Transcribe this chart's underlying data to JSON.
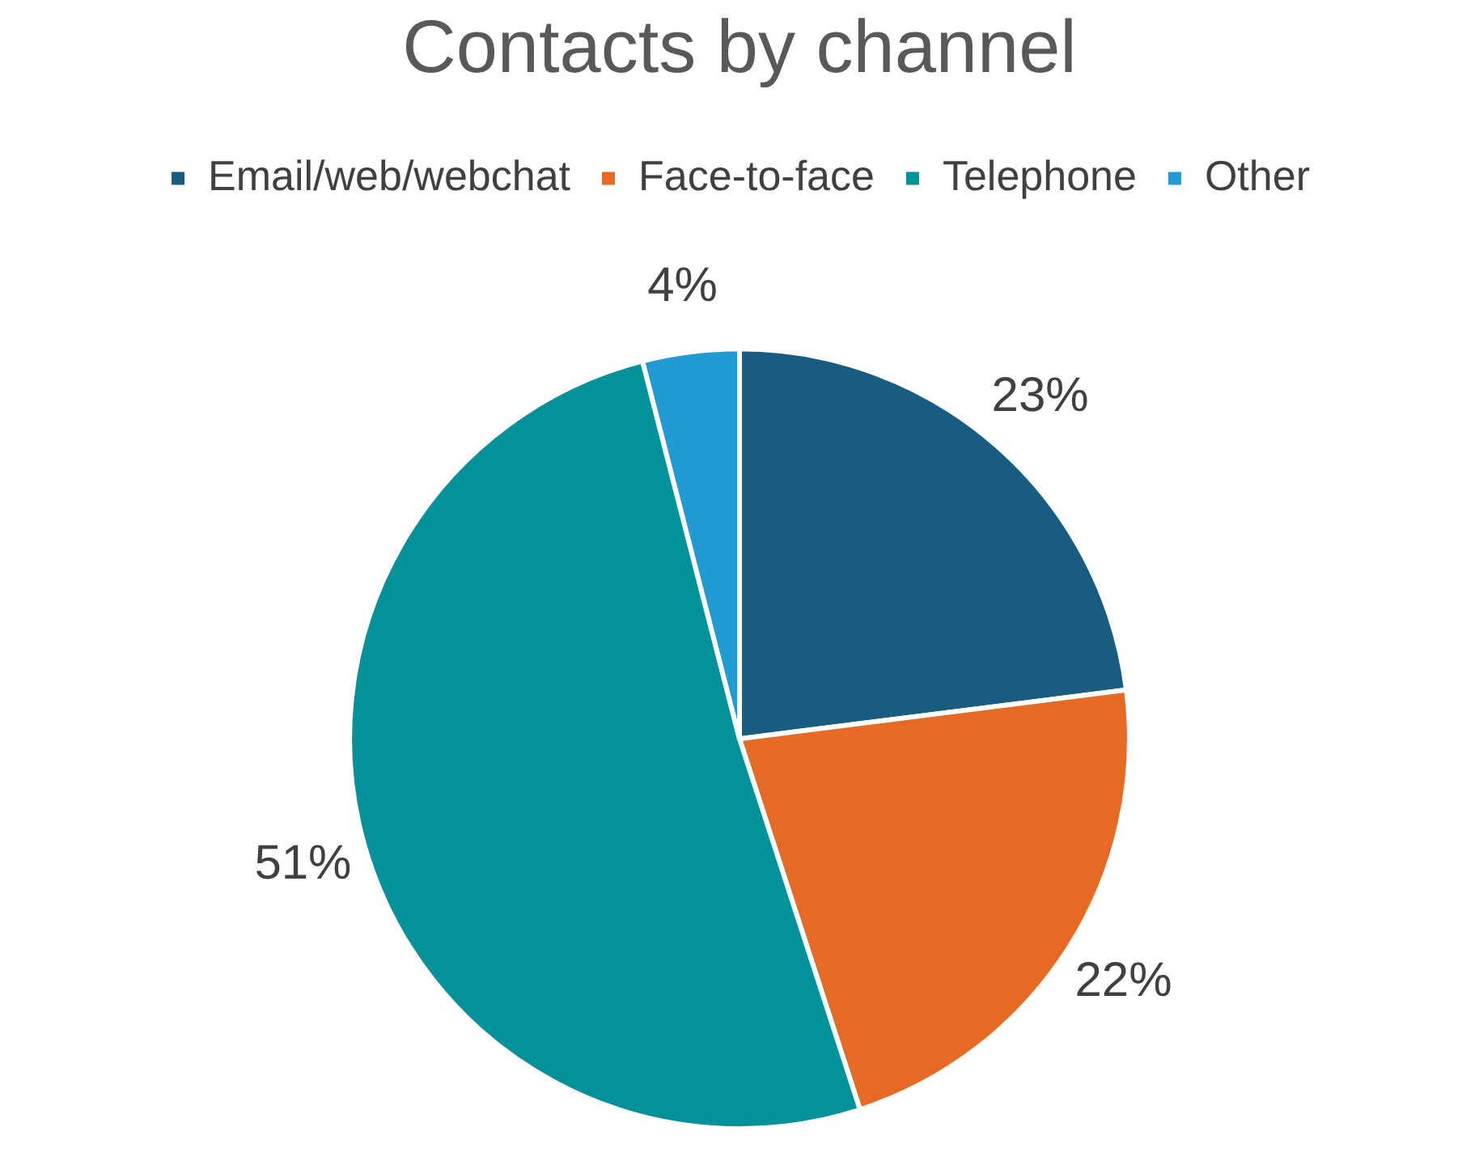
{
  "chart_data": {
    "type": "pie",
    "title": "Contacts by channel",
    "categories": [
      "Email/web/webchat",
      "Face-to-face",
      "Telephone",
      "Other"
    ],
    "values": [
      23,
      22,
      51,
      4
    ],
    "colors": [
      "#185d80",
      "#e66a24",
      "#03919a",
      "#219bd4"
    ],
    "value_labels": [
      "23%",
      "22%",
      "51%",
      "4%"
    ],
    "legend": "top"
  }
}
